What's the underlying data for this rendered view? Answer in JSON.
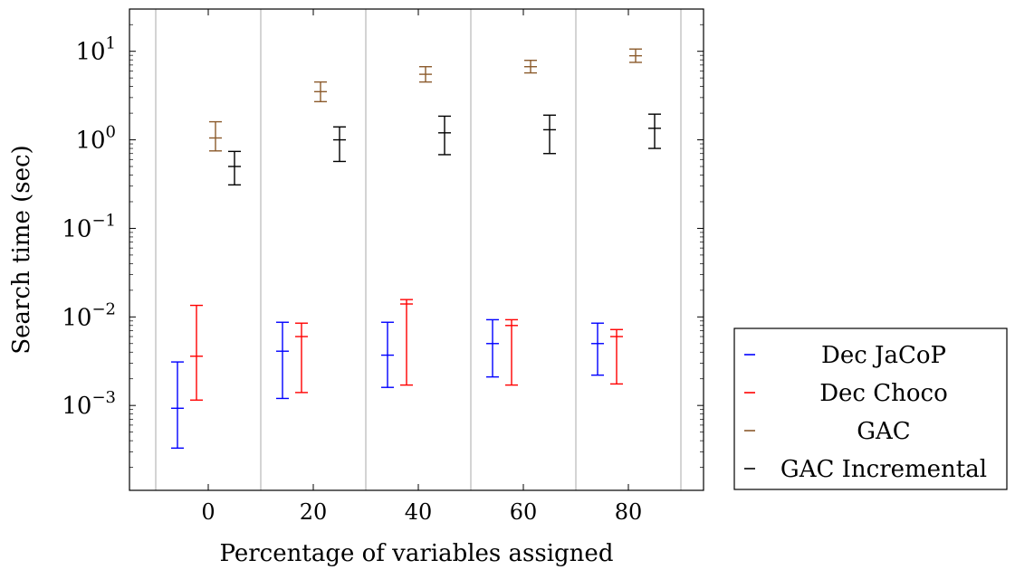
{
  "chart_data": {
    "type": "error-bar",
    "title": "",
    "xlabel": "Percentage of variables assigned",
    "ylabel": "Search time (sec)",
    "y_scale": "log",
    "ylim": [
      0.00011,
      30
    ],
    "y_ticks": [
      {
        "value": 0.001,
        "base": "10",
        "exp": "−3"
      },
      {
        "value": 0.01,
        "base": "10",
        "exp": "−2"
      },
      {
        "value": 0.1,
        "base": "10",
        "exp": "−1"
      },
      {
        "value": 1,
        "base": "10",
        "exp": "0"
      },
      {
        "value": 10,
        "base": "10",
        "exp": "1"
      }
    ],
    "categories": [
      "0",
      "20",
      "40",
      "60",
      "80"
    ],
    "grid": "vertical separators between categories",
    "legend_position": "outside-right-bottom",
    "series": [
      {
        "name": "Dec JaCoP",
        "color": "#0000ff",
        "points": [
          {
            "category": "0",
            "mean": 0.00093,
            "low": 0.00033,
            "high": 0.0031
          },
          {
            "category": "20",
            "mean": 0.0041,
            "low": 0.0012,
            "high": 0.0087
          },
          {
            "category": "40",
            "mean": 0.0037,
            "low": 0.0016,
            "high": 0.0087
          },
          {
            "category": "60",
            "mean": 0.005,
            "low": 0.0021,
            "high": 0.0093
          },
          {
            "category": "80",
            "mean": 0.005,
            "low": 0.0022,
            "high": 0.0085
          }
        ]
      },
      {
        "name": "Dec Choco",
        "color": "#ff0000",
        "points": [
          {
            "category": "0",
            "mean": 0.0036,
            "low": 0.00115,
            "high": 0.0135
          },
          {
            "category": "20",
            "mean": 0.006,
            "low": 0.0014,
            "high": 0.0085
          },
          {
            "category": "40",
            "mean": 0.014,
            "low": 0.0017,
            "high": 0.0157
          },
          {
            "category": "60",
            "mean": 0.008,
            "low": 0.0017,
            "high": 0.0093
          },
          {
            "category": "80",
            "mean": 0.006,
            "low": 0.00175,
            "high": 0.0072
          }
        ]
      },
      {
        "name": "GAC",
        "color": "#8b5a2b",
        "points": [
          {
            "category": "0",
            "mean": 1.05,
            "low": 0.75,
            "high": 1.6
          },
          {
            "category": "20",
            "mean": 3.5,
            "low": 2.7,
            "high": 4.5
          },
          {
            "category": "40",
            "mean": 5.5,
            "low": 4.5,
            "high": 6.7
          },
          {
            "category": "60",
            "mean": 6.7,
            "low": 5.7,
            "high": 7.9
          },
          {
            "category": "80",
            "mean": 8.9,
            "low": 7.5,
            "high": 10.6
          }
        ]
      },
      {
        "name": "GAC Incremental",
        "color": "#000000",
        "points": [
          {
            "category": "0",
            "mean": 0.5,
            "low": 0.31,
            "high": 0.74
          },
          {
            "category": "20",
            "mean": 1.0,
            "low": 0.57,
            "high": 1.4
          },
          {
            "category": "40",
            "mean": 1.2,
            "low": 0.68,
            "high": 1.85
          },
          {
            "category": "60",
            "mean": 1.3,
            "low": 0.7,
            "high": 1.9
          },
          {
            "category": "80",
            "mean": 1.35,
            "low": 0.8,
            "high": 1.95
          }
        ]
      }
    ]
  }
}
